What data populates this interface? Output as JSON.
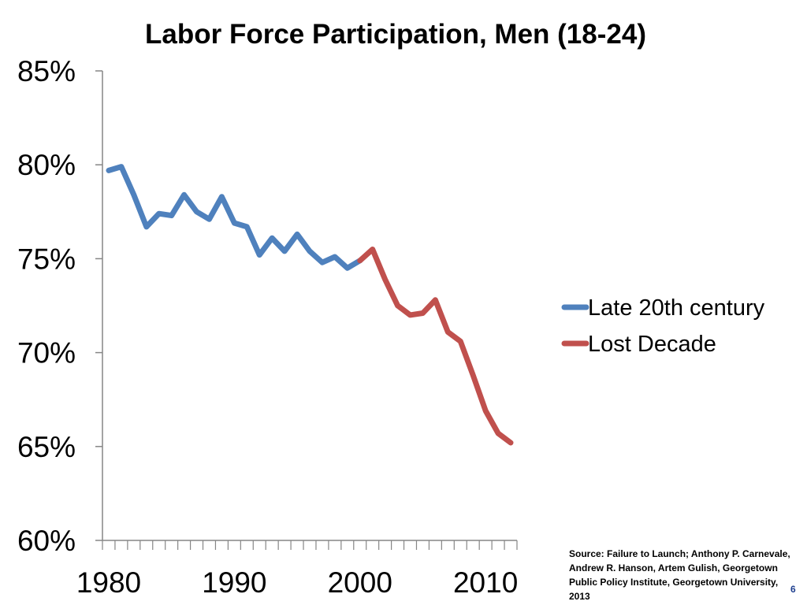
{
  "chart_data": {
    "type": "line",
    "title": "Labor Force Participation, Men (18-24)",
    "xlabel": "",
    "ylabel": "",
    "xlim": [
      1979.5,
      2012.5
    ],
    "ylim": [
      0.6,
      0.85
    ],
    "y_ticks": [
      "60%",
      "65%",
      "70%",
      "75%",
      "80%",
      "85%"
    ],
    "y_tick_values": [
      0.6,
      0.65,
      0.7,
      0.75,
      0.8,
      0.85
    ],
    "x_ticks": [
      "1980",
      "1990",
      "2000",
      "2010"
    ],
    "x_tick_values": [
      1980,
      1990,
      2000,
      2010
    ],
    "legend_position": "right",
    "series": [
      {
        "name": "Late 20th century",
        "color": "#4f81bd",
        "x": [
          1980,
          1981,
          1982,
          1983,
          1984,
          1985,
          1986,
          1987,
          1988,
          1989,
          1990,
          1991,
          1992,
          1993,
          1994,
          1995,
          1996,
          1997,
          1998,
          1999,
          2000
        ],
        "values": [
          0.797,
          0.799,
          0.784,
          0.767,
          0.774,
          0.773,
          0.784,
          0.775,
          0.771,
          0.783,
          0.769,
          0.767,
          0.752,
          0.761,
          0.754,
          0.763,
          0.754,
          0.748,
          0.751,
          0.745,
          0.749
        ]
      },
      {
        "name": "Lost Decade",
        "color": "#c0504d",
        "x": [
          2000,
          2001,
          2002,
          2003,
          2004,
          2005,
          2006,
          2007,
          2008,
          2009,
          2010,
          2011,
          2012
        ],
        "values": [
          0.749,
          0.755,
          0.739,
          0.725,
          0.72,
          0.721,
          0.728,
          0.711,
          0.706,
          0.688,
          0.669,
          0.657,
          0.652
        ]
      }
    ]
  },
  "source": {
    "text": "Source:  Failure to Launch;  Anthony P. Carnevale, Andrew R. Hanson, Artem Gulish, Georgetown  Public Policy Institute, Georgetown University, 2013"
  },
  "page": {
    "number": "6"
  }
}
